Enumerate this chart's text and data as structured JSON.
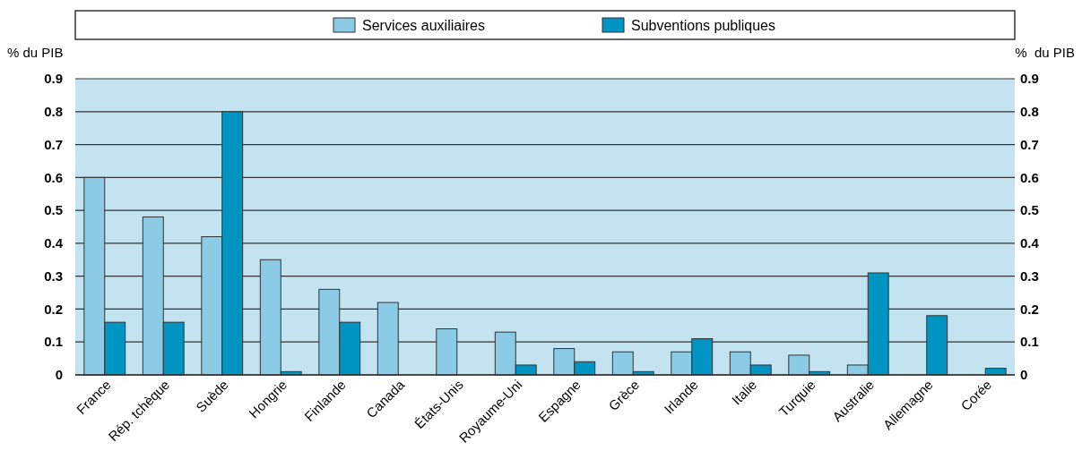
{
  "chart_data": {
    "type": "bar",
    "ylabel": "% du PIB",
    "y2label": "%  du PIB",
    "categories": [
      "France",
      "Rép. tchèque",
      "Suède",
      "Hongrie",
      "Finlande",
      "Canada",
      "États-Unis",
      "Royaume-Uni",
      "Espagne",
      "Grèce",
      "Irlande",
      "Italie",
      "Turquie",
      "Australie",
      "Allemagne",
      "Corée"
    ],
    "series": [
      {
        "name": "Services auxiliaires",
        "color": "#8ccbe5",
        "values": [
          0.6,
          0.48,
          0.42,
          0.35,
          0.26,
          0.22,
          0.14,
          0.13,
          0.08,
          0.07,
          0.07,
          0.07,
          0.06,
          0.03,
          null,
          null
        ]
      },
      {
        "name": "Subventions publiques",
        "color": "#0094c2",
        "values": [
          0.16,
          0.16,
          0.8,
          0.01,
          0.16,
          null,
          null,
          0.03,
          0.04,
          0.01,
          0.11,
          0.03,
          0.01,
          0.31,
          0.18,
          0.02
        ]
      }
    ],
    "ylim": [
      0,
      0.9
    ],
    "yticks": [
      0,
      0.1,
      0.2,
      0.3,
      0.4,
      0.5,
      0.6,
      0.7,
      0.8,
      0.9
    ],
    "y2lim": [
      0,
      0.9
    ],
    "y2ticks": [
      0,
      0.1,
      0.2,
      0.3,
      0.4,
      0.5,
      0.6,
      0.7,
      0.8,
      0.9
    ],
    "grid": "y",
    "legend": "top"
  }
}
